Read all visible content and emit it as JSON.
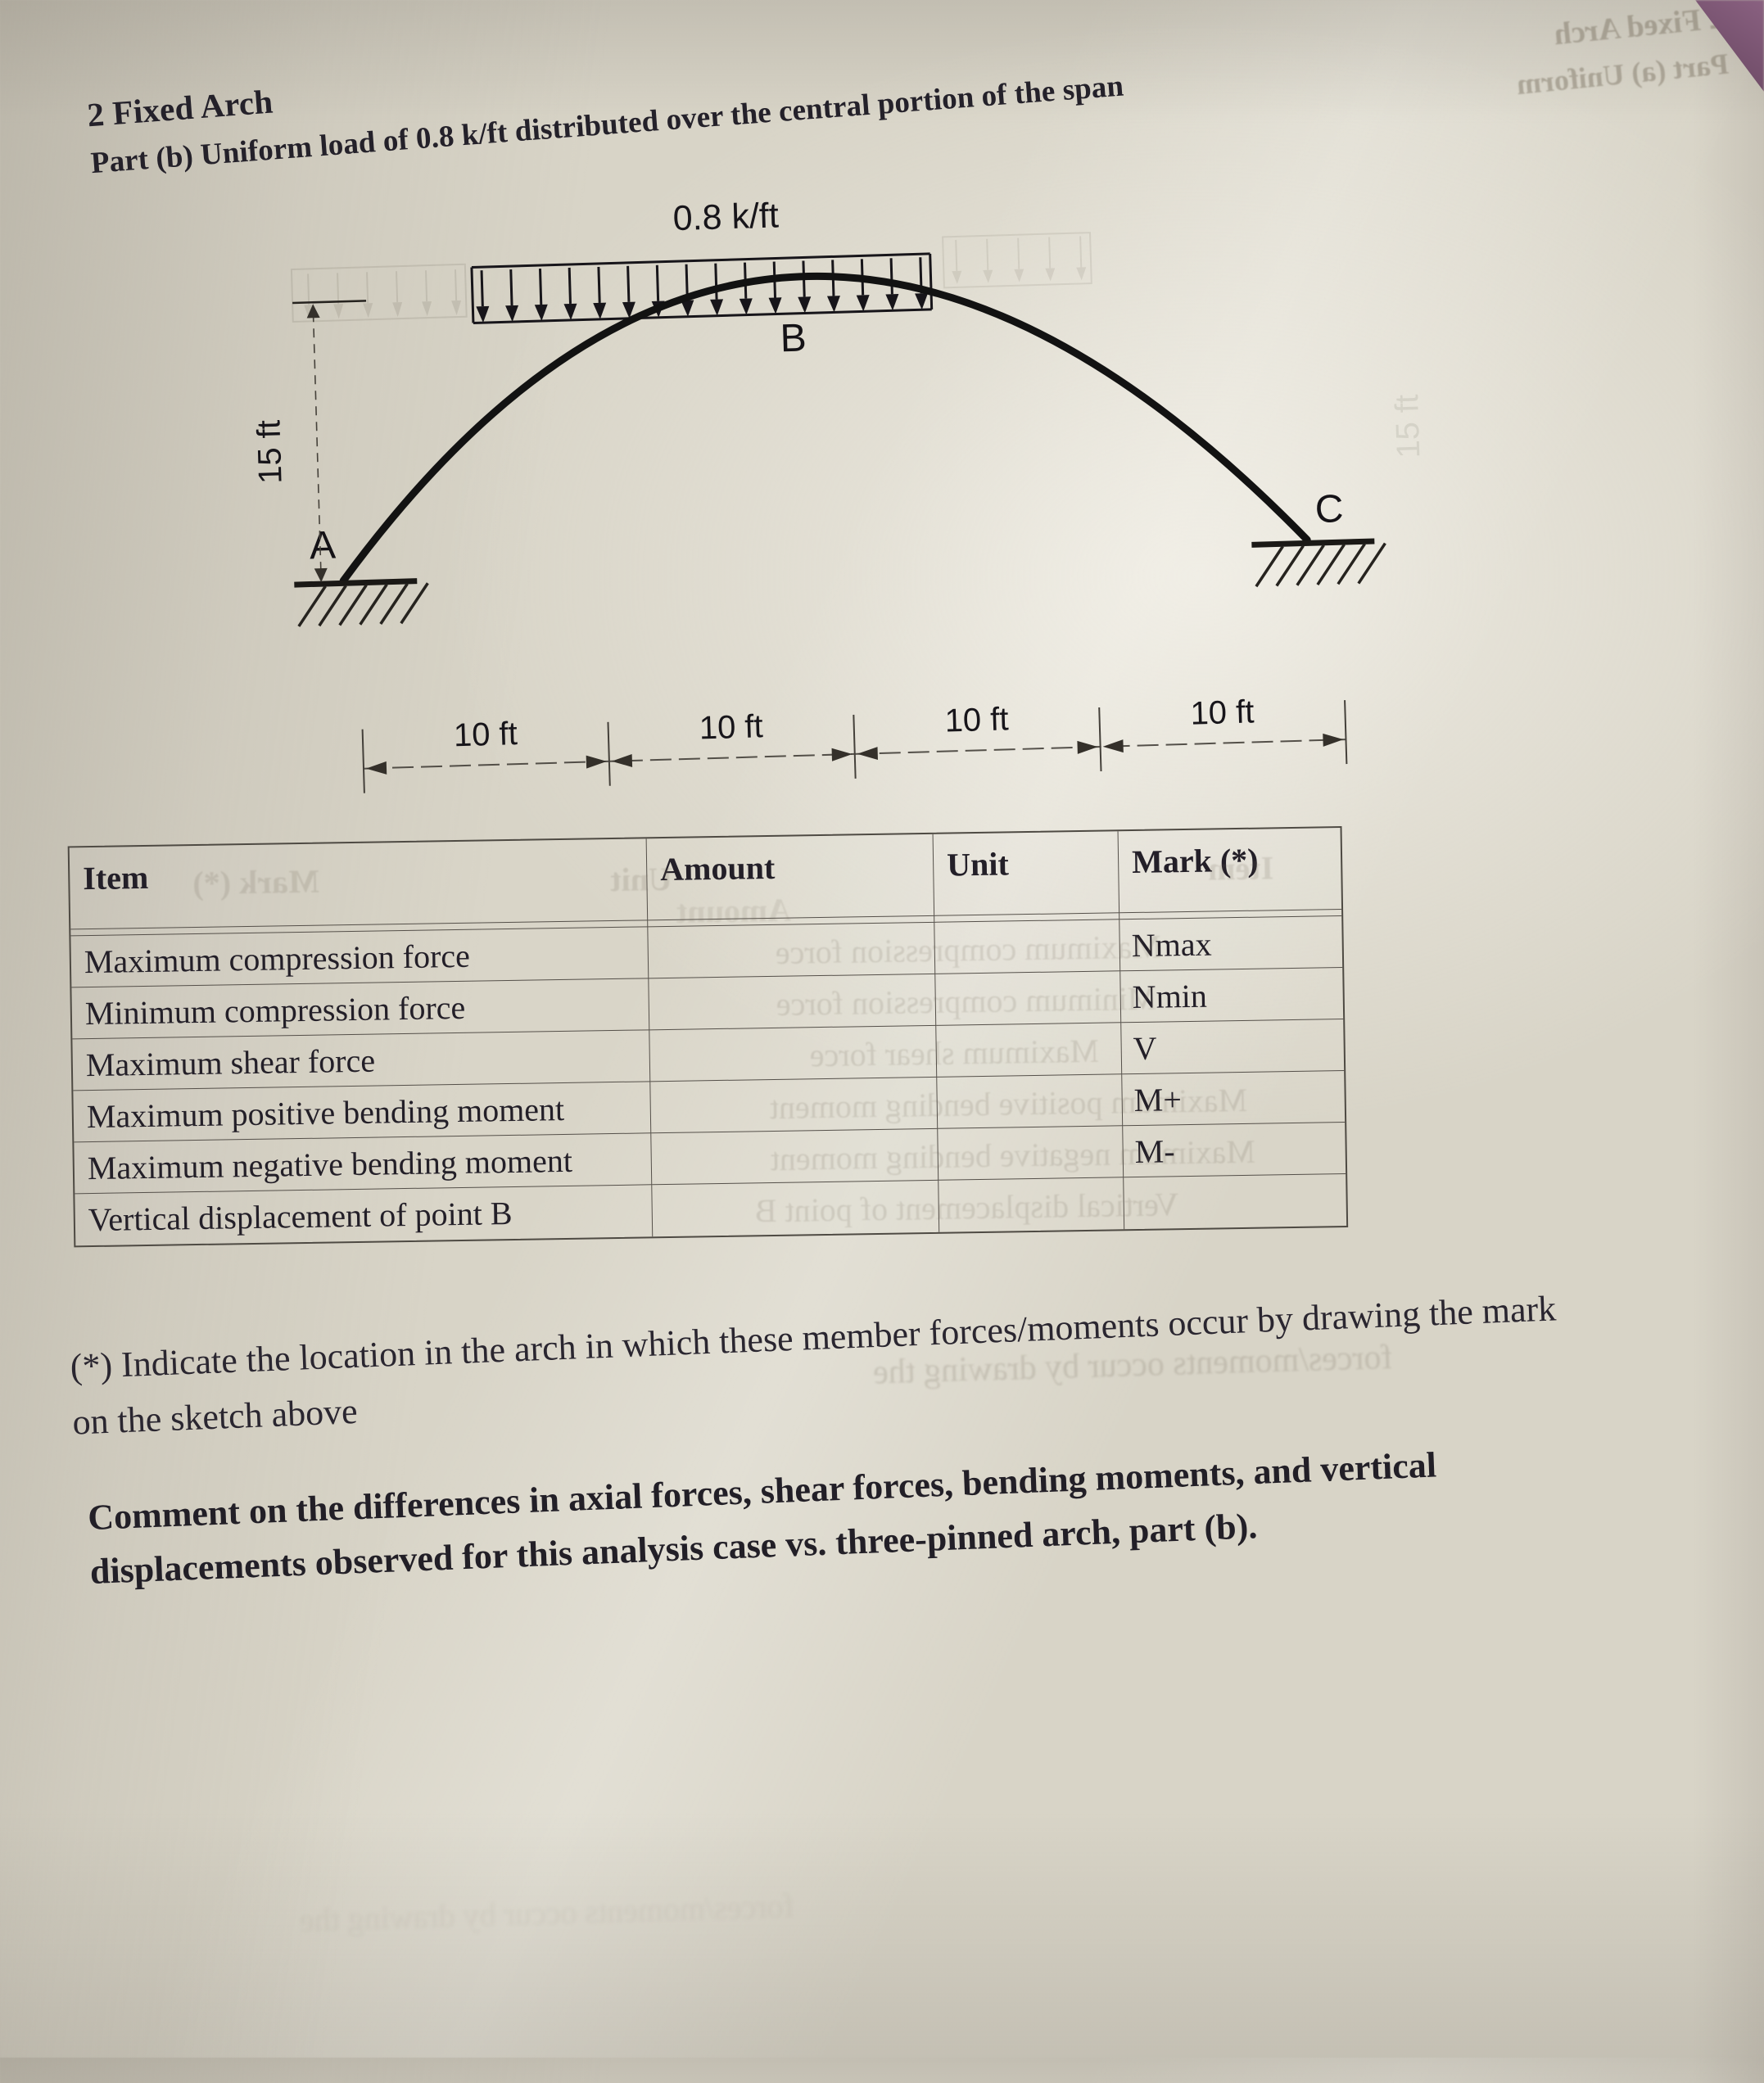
{
  "page": {
    "title": "2 Fixed Arch",
    "subtitle": "Part (b) Uniform load of 0.8 k/ft distributed over the central portion of the span"
  },
  "diagram": {
    "load_label": "0.8 k/ft",
    "support_left_label": "A",
    "crown_label": "B",
    "support_right_label": "C",
    "rise_dimension": "15 ft",
    "span_segments": [
      "10 ft",
      "10 ft",
      "10 ft",
      "10 ft"
    ]
  },
  "table": {
    "headers": [
      "Item",
      "Amount",
      "Unit",
      "Mark (*)"
    ],
    "rows": [
      {
        "item": "Maximum compression force",
        "amount": "",
        "unit": "",
        "mark": "Nmax"
      },
      {
        "item": "Minimum compression force",
        "amount": "",
        "unit": "",
        "mark": "Nmin"
      },
      {
        "item": "Maximum shear force",
        "amount": "",
        "unit": "",
        "mark": "V"
      },
      {
        "item": "Maximum positive bending moment",
        "amount": "",
        "unit": "",
        "mark": "M+"
      },
      {
        "item": "Maximum negative bending moment",
        "amount": "",
        "unit": "",
        "mark": "M-"
      },
      {
        "item": "Vertical displacement of point B",
        "amount": "",
        "unit": "",
        "mark": ""
      }
    ]
  },
  "notes": {
    "footnote_lines": [
      "(*) Indicate the location in the arch in which these member forces/moments occur by drawing the mark",
      "on the sketch above"
    ],
    "comment_lines": [
      "Comment on the differences in axial forces, shear forces, bending moments, and vertical",
      "displacements observed for this analysis case vs. three-pinned arch, part (b)."
    ]
  },
  "bleed_through": {
    "title_mirror": "2 Fixed Arch",
    "subtitle_mirror": "Part (a) Uniform",
    "footnote_mirror": "forces/moments occur by drawing the"
  },
  "colors": {
    "paper": "#d8d4c7",
    "ink": "#24212a",
    "diagram_ink": "#17151a",
    "table_border": "#55504a",
    "backdrop_corner": "#74506c"
  }
}
